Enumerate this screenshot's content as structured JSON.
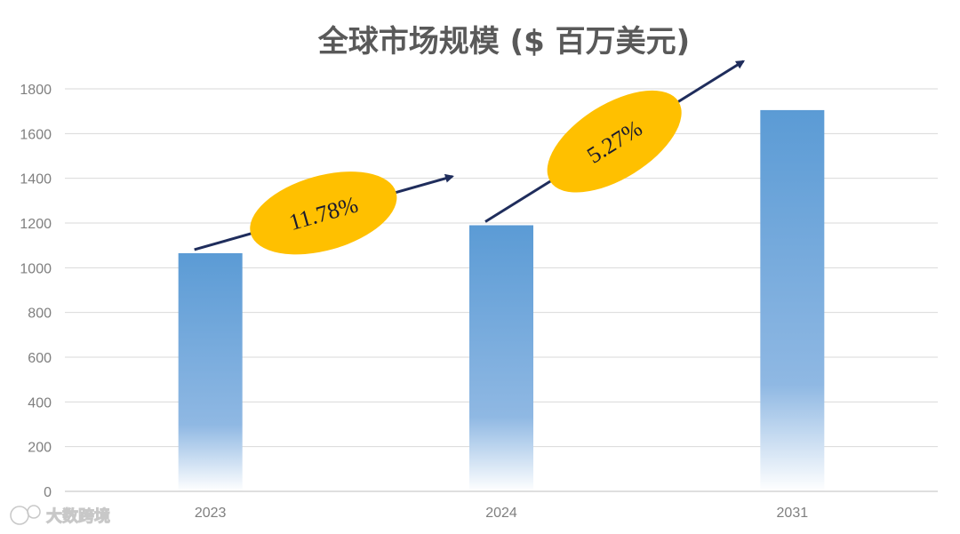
{
  "chart_data": {
    "type": "bar",
    "title": "全球市场规模 ($ 百万美元)",
    "categories": [
      "2023",
      "2024",
      "2031"
    ],
    "values": [
      1065,
      1190,
      1705
    ],
    "ylim": [
      0,
      1800
    ],
    "yticks": [
      0,
      200,
      400,
      600,
      800,
      1000,
      1200,
      1400,
      1600,
      1800
    ],
    "grid": true,
    "bar_color": "#5b9bd5",
    "annotations": [
      {
        "label": "11.78%",
        "from": "2023",
        "to": "2024"
      },
      {
        "label": "5.27%",
        "from": "2024",
        "to": "2031"
      }
    ],
    "annotation_color": "#ffc000",
    "arrow_color": "#1f2d5c"
  },
  "watermark": {
    "text": "大数跨境",
    "icon": "logo-badge-icon"
  }
}
